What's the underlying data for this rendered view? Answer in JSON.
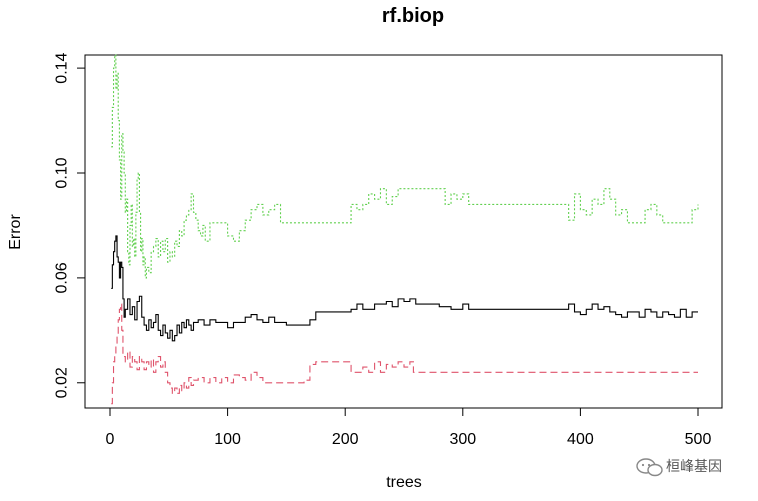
{
  "chart_data": {
    "type": "line",
    "title": "rf.biop",
    "xlabel": "trees",
    "ylabel": "Error",
    "xlim": [
      0,
      500
    ],
    "ylim": [
      0.01,
      0.145
    ],
    "x_ticks": [
      0,
      100,
      200,
      300,
      400,
      500
    ],
    "y_ticks": [
      0.02,
      0.06,
      0.1,
      0.14
    ],
    "y_tick_labels": [
      "0.02",
      "0.06",
      "0.10",
      "0.14"
    ],
    "grid": false,
    "legend": "none",
    "series": [
      {
        "color": "#000000",
        "dash": "solid",
        "points": [
          [
            1,
            0.056
          ],
          [
            2,
            0.065
          ],
          [
            3,
            0.07
          ],
          [
            4,
            0.074
          ],
          [
            5,
            0.076
          ],
          [
            6,
            0.068
          ],
          [
            7,
            0.066
          ],
          [
            8,
            0.06
          ],
          [
            9,
            0.066
          ],
          [
            10,
            0.064
          ],
          [
            11,
            0.052
          ],
          [
            12,
            0.045
          ],
          [
            13,
            0.048
          ],
          [
            15,
            0.052
          ],
          [
            17,
            0.046
          ],
          [
            19,
            0.049
          ],
          [
            21,
            0.044
          ],
          [
            23,
            0.051
          ],
          [
            25,
            0.053
          ],
          [
            27,
            0.045
          ],
          [
            29,
            0.042
          ],
          [
            31,
            0.04
          ],
          [
            33,
            0.044
          ],
          [
            35,
            0.041
          ],
          [
            37,
            0.043
          ],
          [
            39,
            0.046
          ],
          [
            41,
            0.04
          ],
          [
            43,
            0.038
          ],
          [
            45,
            0.042
          ],
          [
            47,
            0.039
          ],
          [
            49,
            0.037
          ],
          [
            51,
            0.04
          ],
          [
            53,
            0.036
          ],
          [
            55,
            0.038
          ],
          [
            57,
            0.042
          ],
          [
            59,
            0.039
          ],
          [
            61,
            0.043
          ],
          [
            63,
            0.041
          ],
          [
            65,
            0.044
          ],
          [
            67,
            0.042
          ],
          [
            69,
            0.04
          ],
          [
            71,
            0.043
          ],
          [
            75,
            0.044
          ],
          [
            80,
            0.042
          ],
          [
            85,
            0.044
          ],
          [
            90,
            0.043
          ],
          [
            95,
            0.043
          ],
          [
            100,
            0.041
          ],
          [
            105,
            0.043
          ],
          [
            110,
            0.043
          ],
          [
            115,
            0.045
          ],
          [
            120,
            0.046
          ],
          [
            125,
            0.044
          ],
          [
            130,
            0.043
          ],
          [
            135,
            0.045
          ],
          [
            140,
            0.043
          ],
          [
            150,
            0.042
          ],
          [
            160,
            0.042
          ],
          [
            170,
            0.044
          ],
          [
            175,
            0.047
          ],
          [
            180,
            0.047
          ],
          [
            190,
            0.047
          ],
          [
            200,
            0.047
          ],
          [
            205,
            0.048
          ],
          [
            210,
            0.05
          ],
          [
            215,
            0.048
          ],
          [
            220,
            0.048
          ],
          [
            225,
            0.05
          ],
          [
            230,
            0.05
          ],
          [
            235,
            0.051
          ],
          [
            240,
            0.049
          ],
          [
            245,
            0.052
          ],
          [
            250,
            0.051
          ],
          [
            255,
            0.052
          ],
          [
            260,
            0.05
          ],
          [
            270,
            0.05
          ],
          [
            280,
            0.049
          ],
          [
            290,
            0.048
          ],
          [
            300,
            0.05
          ],
          [
            305,
            0.048
          ],
          [
            315,
            0.048
          ],
          [
            330,
            0.048
          ],
          [
            350,
            0.048
          ],
          [
            370,
            0.048
          ],
          [
            385,
            0.048
          ],
          [
            390,
            0.05
          ],
          [
            395,
            0.047
          ],
          [
            400,
            0.046
          ],
          [
            405,
            0.048
          ],
          [
            410,
            0.05
          ],
          [
            415,
            0.048
          ],
          [
            420,
            0.049
          ],
          [
            425,
            0.047
          ],
          [
            430,
            0.046
          ],
          [
            435,
            0.045
          ],
          [
            440,
            0.047
          ],
          [
            450,
            0.045
          ],
          [
            455,
            0.048
          ],
          [
            460,
            0.047
          ],
          [
            465,
            0.045
          ],
          [
            470,
            0.047
          ],
          [
            475,
            0.046
          ],
          [
            480,
            0.045
          ],
          [
            485,
            0.048
          ],
          [
            490,
            0.045
          ],
          [
            495,
            0.047
          ],
          [
            500,
            0.047
          ]
        ]
      },
      {
        "color": "#DF536B",
        "dash": "dashed",
        "points": [
          [
            1,
            0.012
          ],
          [
            2,
            0.02
          ],
          [
            3,
            0.028
          ],
          [
            4,
            0.031
          ],
          [
            5,
            0.034
          ],
          [
            6,
            0.038
          ],
          [
            7,
            0.044
          ],
          [
            8,
            0.048
          ],
          [
            9,
            0.05
          ],
          [
            10,
            0.04
          ],
          [
            11,
            0.03
          ],
          [
            13,
            0.028
          ],
          [
            15,
            0.032
          ],
          [
            17,
            0.026
          ],
          [
            19,
            0.03
          ],
          [
            21,
            0.028
          ],
          [
            23,
            0.025
          ],
          [
            25,
            0.03
          ],
          [
            27,
            0.028
          ],
          [
            29,
            0.025
          ],
          [
            31,
            0.028
          ],
          [
            33,
            0.026
          ],
          [
            35,
            0.029
          ],
          [
            37,
            0.024
          ],
          [
            39,
            0.028
          ],
          [
            41,
            0.03
          ],
          [
            43,
            0.026
          ],
          [
            45,
            0.028
          ],
          [
            47,
            0.024
          ],
          [
            49,
            0.02
          ],
          [
            51,
            0.018
          ],
          [
            53,
            0.016
          ],
          [
            55,
            0.018
          ],
          [
            57,
            0.016
          ],
          [
            59,
            0.019
          ],
          [
            61,
            0.017
          ],
          [
            63,
            0.02
          ],
          [
            65,
            0.018
          ],
          [
            67,
            0.022
          ],
          [
            69,
            0.019
          ],
          [
            71,
            0.021
          ],
          [
            75,
            0.022
          ],
          [
            80,
            0.02
          ],
          [
            85,
            0.022
          ],
          [
            90,
            0.02
          ],
          [
            95,
            0.022
          ],
          [
            100,
            0.02
          ],
          [
            105,
            0.023
          ],
          [
            110,
            0.022
          ],
          [
            115,
            0.021
          ],
          [
            120,
            0.024
          ],
          [
            125,
            0.022
          ],
          [
            130,
            0.02
          ],
          [
            140,
            0.02
          ],
          [
            150,
            0.02
          ],
          [
            160,
            0.02
          ],
          [
            165,
            0.021
          ],
          [
            170,
            0.027
          ],
          [
            175,
            0.028
          ],
          [
            180,
            0.028
          ],
          [
            190,
            0.028
          ],
          [
            200,
            0.028
          ],
          [
            205,
            0.024
          ],
          [
            210,
            0.024
          ],
          [
            215,
            0.026
          ],
          [
            220,
            0.024
          ],
          [
            225,
            0.028
          ],
          [
            230,
            0.024
          ],
          [
            235,
            0.027
          ],
          [
            240,
            0.026
          ],
          [
            245,
            0.028
          ],
          [
            250,
            0.026
          ],
          [
            255,
            0.028
          ],
          [
            258,
            0.024
          ],
          [
            270,
            0.024
          ],
          [
            300,
            0.024
          ],
          [
            350,
            0.024
          ],
          [
            400,
            0.024
          ],
          [
            450,
            0.024
          ],
          [
            500,
            0.024
          ]
        ]
      },
      {
        "color": "#61D04F",
        "dash": "dotted",
        "points": [
          [
            1,
            0.11
          ],
          [
            2,
            0.125
          ],
          [
            3,
            0.14
          ],
          [
            4,
            0.145
          ],
          [
            5,
            0.132
          ],
          [
            6,
            0.138
          ],
          [
            7,
            0.12
          ],
          [
            8,
            0.105
          ],
          [
            9,
            0.09
          ],
          [
            10,
            0.115
          ],
          [
            11,
            0.108
          ],
          [
            12,
            0.1
          ],
          [
            13,
            0.085
          ],
          [
            14,
            0.09
          ],
          [
            15,
            0.07
          ],
          [
            16,
            0.065
          ],
          [
            17,
            0.08
          ],
          [
            18,
            0.088
          ],
          [
            19,
            0.072
          ],
          [
            20,
            0.075
          ],
          [
            21,
            0.068
          ],
          [
            22,
            0.085
          ],
          [
            23,
            0.098
          ],
          [
            24,
            0.1
          ],
          [
            25,
            0.085
          ],
          [
            26,
            0.07
          ],
          [
            27,
            0.075
          ],
          [
            28,
            0.065
          ],
          [
            29,
            0.068
          ],
          [
            30,
            0.06
          ],
          [
            31,
            0.064
          ],
          [
            33,
            0.062
          ],
          [
            35,
            0.07
          ],
          [
            37,
            0.072
          ],
          [
            39,
            0.075
          ],
          [
            41,
            0.068
          ],
          [
            43,
            0.074
          ],
          [
            45,
            0.07
          ],
          [
            47,
            0.075
          ],
          [
            49,
            0.066
          ],
          [
            51,
            0.07
          ],
          [
            53,
            0.068
          ],
          [
            55,
            0.074
          ],
          [
            57,
            0.072
          ],
          [
            59,
            0.078
          ],
          [
            61,
            0.076
          ],
          [
            63,
            0.082
          ],
          [
            65,
            0.084
          ],
          [
            67,
            0.086
          ],
          [
            69,
            0.092
          ],
          [
            71,
            0.085
          ],
          [
            73,
            0.082
          ],
          [
            75,
            0.078
          ],
          [
            77,
            0.076
          ],
          [
            79,
            0.08
          ],
          [
            81,
            0.074
          ],
          [
            85,
            0.081
          ],
          [
            90,
            0.081
          ],
          [
            95,
            0.081
          ],
          [
            100,
            0.076
          ],
          [
            105,
            0.074
          ],
          [
            110,
            0.078
          ],
          [
            115,
            0.082
          ],
          [
            120,
            0.086
          ],
          [
            125,
            0.088
          ],
          [
            130,
            0.084
          ],
          [
            135,
            0.086
          ],
          [
            140,
            0.088
          ],
          [
            145,
            0.081
          ],
          [
            150,
            0.081
          ],
          [
            160,
            0.081
          ],
          [
            170,
            0.081
          ],
          [
            180,
            0.081
          ],
          [
            190,
            0.081
          ],
          [
            200,
            0.081
          ],
          [
            205,
            0.088
          ],
          [
            210,
            0.086
          ],
          [
            215,
            0.088
          ],
          [
            220,
            0.092
          ],
          [
            225,
            0.09
          ],
          [
            230,
            0.094
          ],
          [
            235,
            0.088
          ],
          [
            240,
            0.091
          ],
          [
            245,
            0.094
          ],
          [
            250,
            0.094
          ],
          [
            260,
            0.094
          ],
          [
            270,
            0.094
          ],
          [
            280,
            0.094
          ],
          [
            285,
            0.088
          ],
          [
            290,
            0.092
          ],
          [
            295,
            0.09
          ],
          [
            300,
            0.092
          ],
          [
            305,
            0.088
          ],
          [
            315,
            0.088
          ],
          [
            330,
            0.088
          ],
          [
            350,
            0.088
          ],
          [
            370,
            0.088
          ],
          [
            385,
            0.088
          ],
          [
            390,
            0.082
          ],
          [
            395,
            0.092
          ],
          [
            400,
            0.086
          ],
          [
            405,
            0.084
          ],
          [
            410,
            0.09
          ],
          [
            415,
            0.088
          ],
          [
            420,
            0.094
          ],
          [
            425,
            0.09
          ],
          [
            430,
            0.084
          ],
          [
            435,
            0.086
          ],
          [
            440,
            0.081
          ],
          [
            450,
            0.081
          ],
          [
            455,
            0.086
          ],
          [
            460,
            0.088
          ],
          [
            465,
            0.084
          ],
          [
            470,
            0.081
          ],
          [
            480,
            0.081
          ],
          [
            490,
            0.081
          ],
          [
            495,
            0.086
          ],
          [
            500,
            0.088
          ]
        ]
      }
    ]
  },
  "watermark": {
    "text": "桓峰基因",
    "icon": "wechat-icon"
  }
}
